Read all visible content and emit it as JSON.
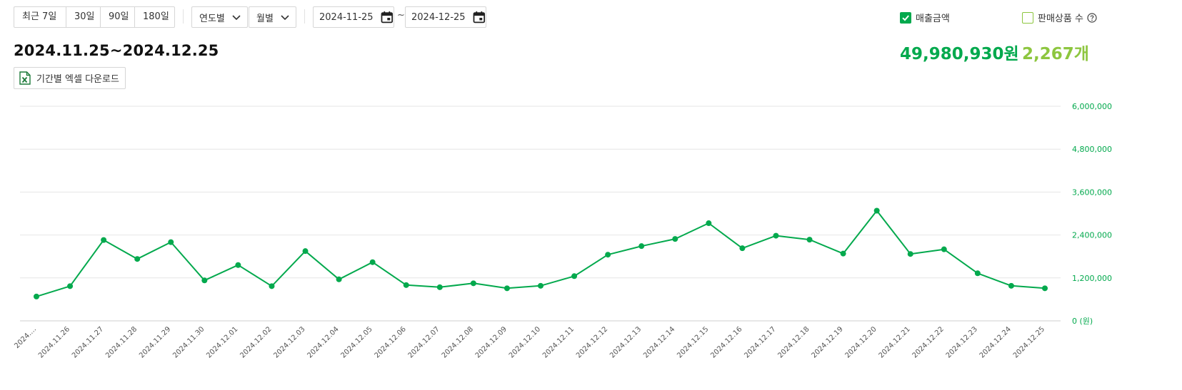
{
  "period_buttons": [
    "최근 7일",
    "30일",
    "90일",
    "180일"
  ],
  "dropdowns": {
    "year": "연도별",
    "month": "월별"
  },
  "date_range": {
    "start": "2024-11-25",
    "separator": "~",
    "end": "2024-12-25"
  },
  "title": "2024.11.25~2024.12.25",
  "excel_button": "기간별 엑셀 다운로드",
  "legend": {
    "sales": {
      "label": "매출금액",
      "checked": true,
      "color": "#03a94d"
    },
    "items": {
      "label": "판매상품 수",
      "checked": false,
      "color": "#8dc63f"
    }
  },
  "totals": {
    "sales": "49,980,930원",
    "items": "2,267개"
  },
  "icons": {
    "calendar": "calendar-icon",
    "chevron": "chevron-down-icon",
    "excel": "excel-file-icon",
    "help": "question-circle-icon",
    "check": "check-icon"
  },
  "chart_data": {
    "type": "line",
    "categories": [
      "2024....",
      "2024.11.26",
      "2024.11.27",
      "2024.11.28",
      "2024.11.29",
      "2024.11.30",
      "2024.12.01",
      "2024.12.02",
      "2024.12.03",
      "2024.12.04",
      "2024.12.05",
      "2024.12.06",
      "2024.12.07",
      "2024.12.08",
      "2024.12.09",
      "2024.12.10",
      "2024.12.11",
      "2024.12.12",
      "2024.12.13",
      "2024.12.14",
      "2024.12.15",
      "2024.12.16",
      "2024.12.17",
      "2024.12.18",
      "2024.12.19",
      "2024.12.20",
      "2024.12.21",
      "2024.12.22",
      "2024.12.23",
      "2024.12.24",
      "2024.12.25"
    ],
    "series": [
      {
        "name": "매출금액",
        "color": "#03a94d",
        "values": [
          680000,
          970000,
          2260000,
          1730000,
          2200000,
          1130000,
          1560000,
          970000,
          1950000,
          1160000,
          1640000,
          1000000,
          940000,
          1050000,
          910000,
          980000,
          1250000,
          1850000,
          2090000,
          2290000,
          2730000,
          2030000,
          2380000,
          2270000,
          1880000,
          3080000,
          1870000,
          2000000,
          1330000,
          980000,
          910000
        ]
      }
    ],
    "y_ticks": [
      "6,000,000",
      "4,800,000",
      "3,600,000",
      "2,400,000",
      "1,200,000",
      "0 (원)"
    ],
    "ylim": [
      0,
      6000000
    ],
    "grid": true
  }
}
